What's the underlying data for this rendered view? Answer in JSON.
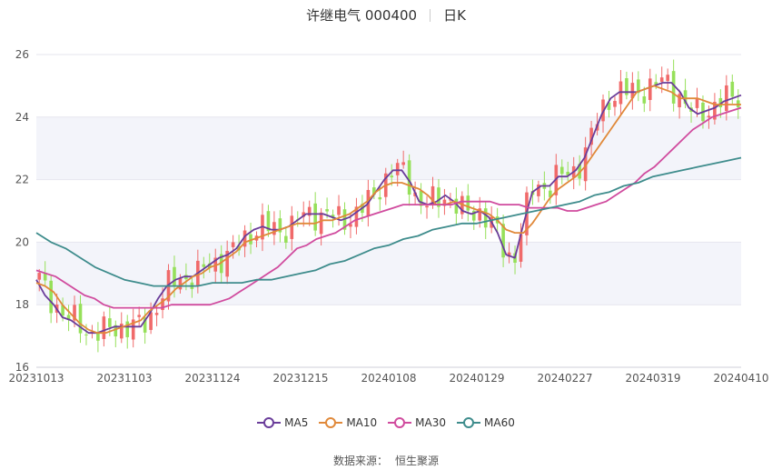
{
  "header": {
    "stock": "许继电气 000400",
    "period": "日K"
  },
  "source": {
    "label": "数据来源：",
    "name": "恒生聚源"
  },
  "chart_data": {
    "type": "candlestick",
    "ylim": [
      16,
      26
    ],
    "yticks": [
      16,
      18,
      20,
      22,
      24,
      26
    ],
    "xticks": [
      "20231013",
      "20231103",
      "20231124",
      "20231215",
      "20240108",
      "20240129",
      "20240227",
      "20240319",
      "20240410"
    ],
    "grid": true,
    "legend_position": "bottom",
    "colors": {
      "up": "#f06a6a",
      "down": "#96e05a",
      "band": "#f3f4fa",
      "grid": "#e6e6ee"
    },
    "series": [
      {
        "name": "MA5",
        "color": "#6a3d9a",
        "values": [
          18.8,
          18.3,
          18.0,
          17.6,
          17.5,
          17.3,
          17.1,
          17.1,
          17.2,
          17.3,
          17.3,
          17.3,
          17.3,
          17.7,
          18.2,
          18.6,
          18.8,
          18.9,
          18.9,
          19.1,
          19.3,
          19.5,
          19.6,
          19.8,
          20.2,
          20.4,
          20.5,
          20.4,
          20.4,
          20.5,
          20.7,
          20.9,
          20.9,
          20.9,
          20.8,
          20.7,
          20.8,
          21.0,
          21.2,
          21.6,
          22.0,
          22.3,
          22.3,
          21.9,
          21.3,
          21.2,
          21.3,
          21.5,
          21.3,
          21.0,
          20.9,
          21.0,
          20.8,
          20.3,
          19.6,
          19.5,
          20.6,
          21.6,
          21.8,
          21.8,
          22.1,
          22.1,
          22.3,
          22.7,
          23.4,
          24.1,
          24.6,
          24.8,
          24.8,
          24.8,
          24.9,
          25.0,
          25.1,
          25.1,
          24.8,
          24.3,
          24.1,
          24.2,
          24.3,
          24.5,
          24.6,
          24.7
        ]
      },
      {
        "name": "MA10",
        "color": "#e0893a",
        "values": [
          18.7,
          18.6,
          18.4,
          18.0,
          17.7,
          17.4,
          17.2,
          17.1,
          17.1,
          17.2,
          17.3,
          17.4,
          17.5,
          17.8,
          18.0,
          18.2,
          18.5,
          18.7,
          18.9,
          19.0,
          19.2,
          19.3,
          19.5,
          19.7,
          20.0,
          20.1,
          20.2,
          20.3,
          20.4,
          20.5,
          20.6,
          20.6,
          20.6,
          20.7,
          20.7,
          20.8,
          20.9,
          21.1,
          21.3,
          21.6,
          21.8,
          21.9,
          21.9,
          21.8,
          21.7,
          21.5,
          21.2,
          21.2,
          21.3,
          21.2,
          21.1,
          21.0,
          20.9,
          20.7,
          20.4,
          20.3,
          20.3,
          20.6,
          21.0,
          21.4,
          21.7,
          21.9,
          22.1,
          22.4,
          22.8,
          23.2,
          23.6,
          24.0,
          24.4,
          24.8,
          24.9,
          25.0,
          24.9,
          24.8,
          24.6,
          24.6,
          24.6,
          24.5,
          24.4,
          24.4,
          24.4,
          24.4
        ]
      },
      {
        "name": "MA30",
        "color": "#d04b9e",
        "values": [
          19.1,
          19.0,
          18.9,
          18.7,
          18.5,
          18.3,
          18.2,
          18.0,
          17.9,
          17.9,
          17.9,
          17.9,
          17.9,
          17.9,
          18.0,
          18.0,
          18.0,
          18.0,
          18.0,
          18.1,
          18.2,
          18.4,
          18.6,
          18.8,
          19.0,
          19.2,
          19.5,
          19.8,
          19.9,
          20.1,
          20.2,
          20.3,
          20.5,
          20.7,
          20.8,
          20.9,
          21.0,
          21.1,
          21.2,
          21.2,
          21.2,
          21.2,
          21.2,
          21.2,
          21.3,
          21.3,
          21.3,
          21.3,
          21.2,
          21.2,
          21.2,
          21.1,
          21.1,
          21.1,
          21.1,
          21.0,
          21.0,
          21.1,
          21.2,
          21.3,
          21.5,
          21.7,
          21.9,
          22.2,
          22.4,
          22.7,
          23.0,
          23.3,
          23.6,
          23.8,
          24.0,
          24.1,
          24.2,
          24.3
        ]
      },
      {
        "name": "MA60",
        "color": "#3e8c8c",
        "values": [
          20.3,
          20.0,
          19.8,
          19.5,
          19.2,
          19.0,
          18.8,
          18.7,
          18.6,
          18.6,
          18.6,
          18.6,
          18.7,
          18.7,
          18.7,
          18.8,
          18.8,
          18.9,
          19.0,
          19.1,
          19.3,
          19.4,
          19.6,
          19.8,
          19.9,
          20.1,
          20.2,
          20.4,
          20.5,
          20.6,
          20.6,
          20.7,
          20.8,
          20.9,
          21.0,
          21.1,
          21.2,
          21.3,
          21.5,
          21.6,
          21.8,
          21.9,
          22.1,
          22.2,
          22.3,
          22.4,
          22.5,
          22.6,
          22.7
        ]
      }
    ]
  }
}
